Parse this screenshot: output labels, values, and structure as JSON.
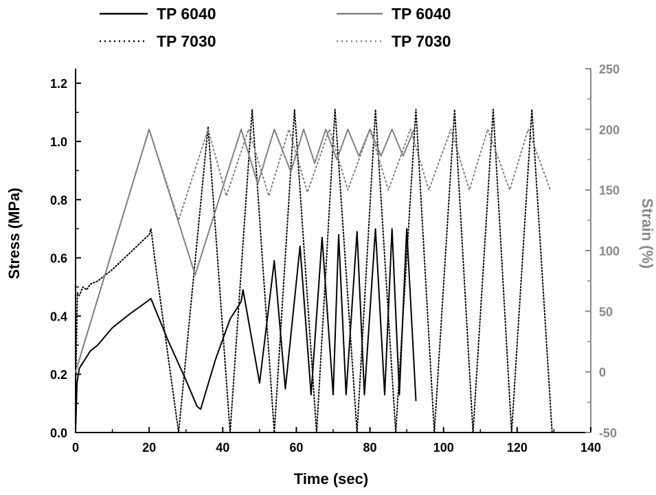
{
  "chart_data": {
    "type": "line",
    "title": "",
    "xlabel": "Time (sec)",
    "ylabel": "Stress (MPa)",
    "y2label": "Strain (%)",
    "xlim": [
      0,
      140
    ],
    "ylim": [
      0,
      1.25
    ],
    "y2lim": [
      -50,
      250
    ],
    "x_ticks": [
      "0",
      "20",
      "40",
      "60",
      "80",
      "100",
      "120",
      "140"
    ],
    "y_ticks": [
      "0.0",
      "0.2",
      "0.4",
      "0.6",
      "0.8",
      "1.0",
      "1.2"
    ],
    "y2_ticks": [
      "-50",
      "0",
      "50",
      "100",
      "150",
      "200",
      "250"
    ],
    "colors": {
      "stress": "#000000",
      "strain": "#808080",
      "secondary_axis": "#888888"
    },
    "legend": [
      {
        "label": "TP 6040",
        "axis": "left",
        "style": "solid"
      },
      {
        "label": "TP 7030",
        "axis": "left",
        "style": "dotted"
      },
      {
        "label": "TP 6040",
        "axis": "right",
        "style": "solid"
      },
      {
        "label": "TP 7030",
        "axis": "right",
        "style": "dotted"
      }
    ],
    "series": [
      {
        "name": "TP 6040",
        "axis": "left",
        "style": "solid",
        "color": "#000000",
        "x": [
          0,
          0.4,
          1,
          2,
          3,
          4,
          6,
          10,
          15,
          20,
          20.5,
          25,
          30,
          33,
          34,
          38,
          42,
          45,
          45.5,
          50,
          54,
          57,
          61,
          64,
          67,
          70,
          71.5,
          73.5,
          76.5,
          78.5,
          81.5,
          84,
          86,
          88,
          90,
          92.5
        ],
        "y": [
          0,
          0.17,
          0.22,
          0.24,
          0.26,
          0.28,
          0.3,
          0.36,
          0.41,
          0.455,
          0.46,
          0.32,
          0.18,
          0.09,
          0.08,
          0.25,
          0.39,
          0.45,
          0.49,
          0.17,
          0.59,
          0.15,
          0.64,
          0.13,
          0.67,
          0.13,
          0.68,
          0.13,
          0.69,
          0.13,
          0.7,
          0.13,
          0.7,
          0.13,
          0.7,
          0.11
        ]
      },
      {
        "name": "TP 7030",
        "axis": "left",
        "style": "dotted",
        "color": "#000000",
        "x": [
          0,
          0.5,
          1,
          2,
          3,
          4,
          6,
          10,
          15,
          20,
          20.5,
          22,
          28,
          36,
          42,
          48,
          54,
          59.5,
          65.5,
          70.5,
          76.5,
          81.5,
          87,
          92.5,
          97.5,
          103,
          108,
          113.5,
          118.5,
          124,
          129.5
        ],
        "y": [
          0.13,
          0.48,
          0.47,
          0.5,
          0.49,
          0.51,
          0.52,
          0.56,
          0.62,
          0.68,
          0.7,
          0.55,
          0,
          1.05,
          0,
          1.11,
          0,
          1.11,
          0,
          1.11,
          0,
          1.11,
          0,
          1.11,
          0,
          1.11,
          0,
          1.11,
          0,
          1.11,
          0
        ]
      },
      {
        "name": "TP 6040",
        "axis": "right",
        "style": "solid",
        "color": "#808080",
        "x": [
          0,
          20,
          32.5,
          45,
          49.5,
          54,
          58.5,
          62,
          65,
          68,
          71,
          74,
          77,
          80,
          83,
          86,
          89,
          92
        ],
        "y": [
          0,
          200,
          80,
          200,
          155,
          200,
          165,
          200,
          172,
          200,
          175,
          200,
          178,
          200,
          178,
          200,
          178,
          200
        ]
      },
      {
        "name": "TP 7030",
        "axis": "right",
        "style": "dotted",
        "color": "#808080",
        "x": [
          0,
          20,
          28,
          36,
          41,
          47,
          52.5,
          58,
          63,
          69,
          74,
          80,
          85,
          91,
          96,
          102,
          107,
          112,
          118,
          123,
          129
        ],
        "y": [
          0,
          200,
          125,
          200,
          145,
          200,
          145,
          200,
          148,
          200,
          150,
          200,
          150,
          200,
          150,
          200,
          150,
          200,
          150,
          200,
          150
        ]
      }
    ]
  }
}
